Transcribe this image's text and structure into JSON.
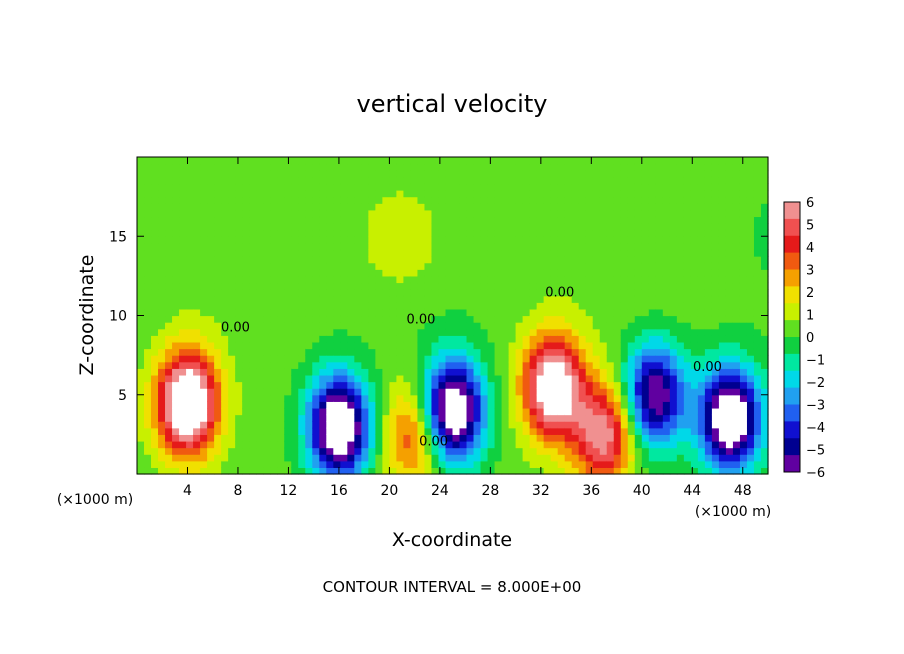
{
  "chart_data": {
    "type": "heatmap",
    "title": "vertical velocity",
    "xlabel": "X-coordinate",
    "ylabel": "Z-coordinate",
    "x_unit_left": "(×1000 m)",
    "x_unit_right": "(×1000 m)",
    "footer": "CONTOUR INTERVAL = 8.000E+00",
    "xlim": [
      0,
      50
    ],
    "ylim": [
      0,
      20
    ],
    "x_ticks": [
      4,
      8,
      12,
      16,
      20,
      24,
      28,
      32,
      36,
      40,
      44,
      48
    ],
    "y_ticks": [
      5,
      10,
      15
    ],
    "contour_labels": [
      {
        "text": "0.00",
        "x": 33.5,
        "z": 11.2
      },
      {
        "text": "0.00",
        "x": 22.5,
        "z": 9.5
      },
      {
        "text": "0.00",
        "x": 7.8,
        "z": 9.0
      },
      {
        "text": "0.00",
        "x": 45.2,
        "z": 6.5
      },
      {
        "text": "0.00",
        "x": 23.5,
        "z": 1.8
      }
    ],
    "colorbar": {
      "labels": [
        "6",
        "5",
        "4",
        "3",
        "2",
        "1",
        "0",
        "−1",
        "−2",
        "−3",
        "−4",
        "−5",
        "−6"
      ],
      "colors": [
        "#f09090",
        "#f05050",
        "#e51a1a",
        "#f05a10",
        "#f5a000",
        "#f0e000",
        "#c8f000",
        "#60e020",
        "#10d040",
        "#00e8a0",
        "#00d8e8",
        "#20a0f0",
        "#2060f0",
        "#1010d0",
        "#000090",
        "#6000a0"
      ]
    },
    "field_features": [
      {
        "kind": "updraft",
        "x": 4,
        "z": 4.5,
        "amp": 9
      },
      {
        "kind": "updraft",
        "x": 33,
        "z": 5.5,
        "amp": 8
      },
      {
        "kind": "updraft",
        "x": 22,
        "z": 2.5,
        "amp": 4
      },
      {
        "kind": "updraft",
        "x": 37,
        "z": 2.5,
        "amp": 6
      },
      {
        "kind": "downdraft",
        "x": 16,
        "z": 3.0,
        "amp": 9
      },
      {
        "kind": "downdraft",
        "x": 25,
        "z": 4.0,
        "amp": 9
      },
      {
        "kind": "downdraft",
        "x": 41,
        "z": 5.0,
        "amp": 7
      },
      {
        "kind": "downdraft",
        "x": 47,
        "z": 3.5,
        "amp": 9
      },
      {
        "kind": "updraft",
        "x": 21,
        "z": 15,
        "amp": 1.5
      }
    ]
  }
}
